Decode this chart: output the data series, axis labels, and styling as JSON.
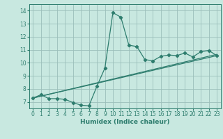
{
  "title": "",
  "xlabel": "Humidex (Indice chaleur)",
  "xlim": [
    -0.5,
    23.5
  ],
  "ylim": [
    6.5,
    14.5
  ],
  "xticks": [
    0,
    1,
    2,
    3,
    4,
    5,
    6,
    7,
    8,
    9,
    10,
    11,
    12,
    13,
    14,
    15,
    16,
    17,
    18,
    19,
    20,
    21,
    22,
    23
  ],
  "yticks": [
    7,
    8,
    9,
    10,
    11,
    12,
    13,
    14
  ],
  "background_color": "#c8e8e0",
  "grid_color": "#9bbfba",
  "line_color": "#2e7d6e",
  "line1_x": [
    0,
    1,
    2,
    3,
    4,
    5,
    6,
    7,
    8,
    9,
    10,
    11,
    12,
    13,
    14,
    15,
    16,
    17,
    18,
    19,
    20,
    21,
    22,
    23
  ],
  "line1_y": [
    7.3,
    7.55,
    7.25,
    7.25,
    7.2,
    6.95,
    6.75,
    6.7,
    8.2,
    9.6,
    13.85,
    13.5,
    11.35,
    11.25,
    10.25,
    10.15,
    10.5,
    10.6,
    10.55,
    10.75,
    10.45,
    10.85,
    10.95,
    10.55
  ],
  "line2_x": [
    0,
    23
  ],
  "line2_y": [
    7.3,
    10.55
  ],
  "line3_x": [
    0,
    23
  ],
  "line3_y": [
    7.3,
    10.65
  ]
}
